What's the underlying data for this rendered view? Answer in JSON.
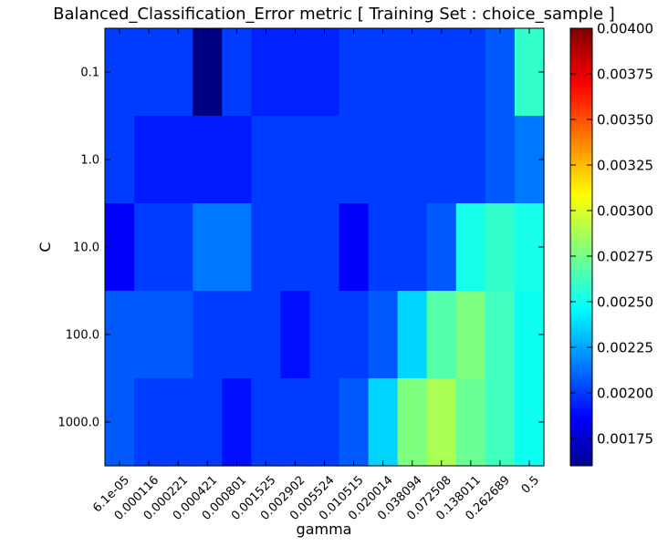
{
  "chart_data": {
    "type": "heatmap",
    "title": "Balanced_Classification_Error metric  [ Training Set : choice_sample ]",
    "xlabel": "gamma",
    "ylabel": "C",
    "x_categories": [
      "6.1e-05",
      "0.000116",
      "0.000221",
      "0.000421",
      "0.000801",
      "0.001525",
      "0.002902",
      "0.005524",
      "0.010515",
      "0.020014",
      "0.038094",
      "0.072508",
      "0.138011",
      "0.262689",
      "0.5"
    ],
    "y_categories": [
      "0.1",
      "1.0",
      "10.0",
      "100.0",
      "1000.0"
    ],
    "values": [
      [
        0.00204,
        0.00204,
        0.00204,
        0.00161,
        0.00204,
        0.00198,
        0.00198,
        0.00198,
        0.00204,
        0.00204,
        0.00204,
        0.00204,
        0.00204,
        0.00211,
        0.00262
      ],
      [
        0.00204,
        0.00196,
        0.00196,
        0.00196,
        0.00196,
        0.00204,
        0.00204,
        0.00204,
        0.00204,
        0.00204,
        0.00204,
        0.00204,
        0.00204,
        0.00211,
        0.00218
      ],
      [
        0.00189,
        0.00204,
        0.00204,
        0.00218,
        0.00218,
        0.00204,
        0.00204,
        0.00204,
        0.00189,
        0.00204,
        0.00204,
        0.00211,
        0.00255,
        0.00262,
        0.00255
      ],
      [
        0.00211,
        0.00211,
        0.00211,
        0.00204,
        0.00204,
        0.00204,
        0.00193,
        0.00204,
        0.00204,
        0.00211,
        0.0024,
        0.0027,
        0.0028,
        0.00265,
        0.00253
      ],
      [
        0.00211,
        0.00204,
        0.00204,
        0.00204,
        0.00193,
        0.00204,
        0.00204,
        0.00204,
        0.00211,
        0.0024,
        0.0028,
        0.0029,
        0.00275,
        0.00265,
        0.00253
      ]
    ],
    "colorbar": {
      "min": 0.0016,
      "max": 0.004,
      "ticks": [
        "0.00175",
        "0.00200",
        "0.00225",
        "0.00250",
        "0.00275",
        "0.00300",
        "0.00325",
        "0.00350",
        "0.00375",
        "0.00400"
      ],
      "colormap": "jet"
    },
    "grid": false
  }
}
